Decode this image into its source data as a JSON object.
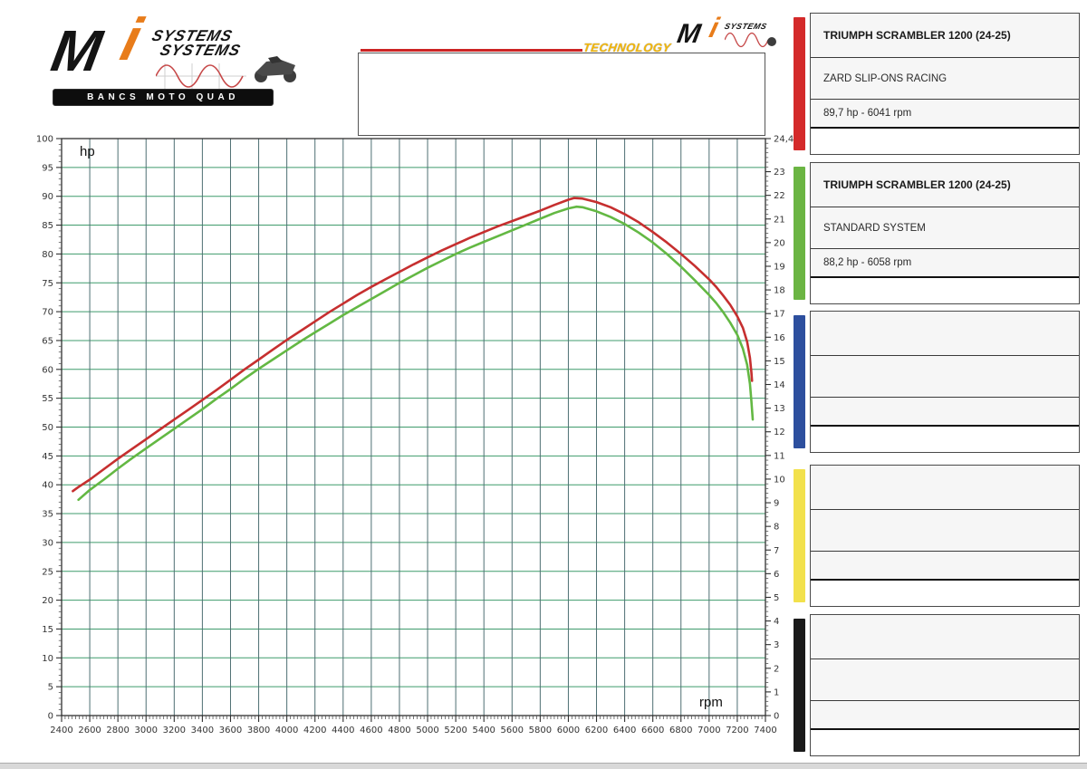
{
  "header": {
    "logo": {
      "brand_m": "M",
      "brand_i": "i",
      "systems_line1": "SYSTEMS",
      "systems_line2": "SYSTEMS",
      "tagline": "BANCS MOTO QUAD"
    },
    "technology_label": "TECHNOLOGY",
    "small_logo": {
      "brand_m": "M",
      "brand_i": "i",
      "systems": "SYSTEMS"
    },
    "note_box_text": ""
  },
  "colors": {
    "accent_red": "#cc2424",
    "accent_orange": "#e87c1a",
    "technology_yellow": "#f3b70a",
    "grid_horizontal": "#3f9b6c",
    "grid_vertical": "#4e6f73"
  },
  "chart_data": {
    "type": "line",
    "title": "",
    "grid": {
      "show": true,
      "horizontal_color": "#3f9b6c",
      "vertical_color": "#4e6f73"
    },
    "axes": {
      "x": {
        "label": "rpm",
        "min": 2400,
        "max": 7400,
        "tick_step": 200,
        "minor_step": 25,
        "tick_labels": [
          "2400",
          "2600",
          "2800",
          "3000",
          "3200",
          "3400",
          "3600",
          "3800",
          "4000",
          "4200",
          "4400",
          "4600",
          "4800",
          "5000",
          "5200",
          "5400",
          "5600",
          "5800",
          "6000",
          "6200",
          "6400",
          "6600",
          "6800",
          "7000",
          "7200",
          "7400"
        ]
      },
      "y_left": {
        "label": "hp",
        "min": 0,
        "max": 100,
        "tick_step": 5,
        "minor_step": 1,
        "tick_labels": [
          "0",
          "5",
          "10",
          "15",
          "20",
          "25",
          "30",
          "35",
          "40",
          "45",
          "50",
          "55",
          "60",
          "65",
          "70",
          "75",
          "80",
          "85",
          "90",
          "95",
          "100"
        ]
      },
      "y_right": {
        "label": "",
        "min": 0,
        "max": 24.4,
        "tick_step": 1,
        "minor_step": 0.2,
        "top_label": "24,4",
        "tick_labels": [
          "0",
          "1",
          "2",
          "3",
          "4",
          "5",
          "6",
          "7",
          "8",
          "9",
          "10",
          "11",
          "12",
          "13",
          "14",
          "15",
          "16",
          "17",
          "18",
          "19",
          "20",
          "21",
          "22",
          "23"
        ]
      }
    },
    "series": [
      {
        "id": "zard",
        "name": "ZARD SLIP-ONS RACING",
        "color": "#c62f2f",
        "peak_label": "89,7 hp - 6041 rpm",
        "points": [
          [
            2480,
            38.9
          ],
          [
            2520,
            39.6
          ],
          [
            2600,
            40.9
          ],
          [
            2700,
            42.7
          ],
          [
            2800,
            44.5
          ],
          [
            2900,
            46.2
          ],
          [
            3000,
            47.9
          ],
          [
            3100,
            49.6
          ],
          [
            3200,
            51.3
          ],
          [
            3300,
            53.0
          ],
          [
            3400,
            54.7
          ],
          [
            3500,
            56.4
          ],
          [
            3600,
            58.2
          ],
          [
            3700,
            60.0
          ],
          [
            3800,
            61.7
          ],
          [
            3900,
            63.4
          ],
          [
            4000,
            65.1
          ],
          [
            4100,
            66.7
          ],
          [
            4200,
            68.3
          ],
          [
            4300,
            69.9
          ],
          [
            4400,
            71.4
          ],
          [
            4500,
            72.9
          ],
          [
            4600,
            74.3
          ],
          [
            4700,
            75.6
          ],
          [
            4800,
            76.9
          ],
          [
            4900,
            78.2
          ],
          [
            5000,
            79.4
          ],
          [
            5100,
            80.6
          ],
          [
            5200,
            81.7
          ],
          [
            5300,
            82.8
          ],
          [
            5400,
            83.8
          ],
          [
            5500,
            84.8
          ],
          [
            5600,
            85.7
          ],
          [
            5700,
            86.6
          ],
          [
            5800,
            87.5
          ],
          [
            5900,
            88.5
          ],
          [
            6000,
            89.4
          ],
          [
            6041,
            89.7
          ],
          [
            6100,
            89.6
          ],
          [
            6200,
            89.0
          ],
          [
            6300,
            88.1
          ],
          [
            6400,
            86.9
          ],
          [
            6500,
            85.5
          ],
          [
            6600,
            83.8
          ],
          [
            6700,
            82.0
          ],
          [
            6800,
            80.0
          ],
          [
            6900,
            77.9
          ],
          [
            7000,
            75.6
          ],
          [
            7050,
            74.3
          ],
          [
            7100,
            72.8
          ],
          [
            7150,
            71.2
          ],
          [
            7200,
            69.2
          ],
          [
            7240,
            67.2
          ],
          [
            7270,
            64.8
          ],
          [
            7290,
            62.0
          ],
          [
            7300,
            59.5
          ],
          [
            7305,
            58.0
          ]
        ]
      },
      {
        "id": "standard",
        "name": "STANDARD SYSTEM",
        "color": "#63b843",
        "peak_label": "88,2 hp - 6058 rpm",
        "points": [
          [
            2520,
            37.4
          ],
          [
            2600,
            39.1
          ],
          [
            2700,
            40.9
          ],
          [
            2800,
            42.8
          ],
          [
            2900,
            44.6
          ],
          [
            3000,
            46.3
          ],
          [
            3100,
            48.0
          ],
          [
            3200,
            49.7
          ],
          [
            3300,
            51.4
          ],
          [
            3400,
            53.1
          ],
          [
            3500,
            54.9
          ],
          [
            3600,
            56.6
          ],
          [
            3700,
            58.4
          ],
          [
            3800,
            60.1
          ],
          [
            3900,
            61.7
          ],
          [
            4000,
            63.3
          ],
          [
            4100,
            64.9
          ],
          [
            4200,
            66.4
          ],
          [
            4300,
            67.9
          ],
          [
            4400,
            69.4
          ],
          [
            4500,
            70.8
          ],
          [
            4600,
            72.2
          ],
          [
            4700,
            73.6
          ],
          [
            4800,
            75.0
          ],
          [
            4900,
            76.3
          ],
          [
            5000,
            77.6
          ],
          [
            5100,
            78.8
          ],
          [
            5200,
            80.0
          ],
          [
            5300,
            81.1
          ],
          [
            5400,
            82.1
          ],
          [
            5500,
            83.1
          ],
          [
            5600,
            84.1
          ],
          [
            5700,
            85.1
          ],
          [
            5800,
            86.1
          ],
          [
            5900,
            87.1
          ],
          [
            6000,
            87.9
          ],
          [
            6058,
            88.2
          ],
          [
            6100,
            88.1
          ],
          [
            6200,
            87.4
          ],
          [
            6300,
            86.4
          ],
          [
            6400,
            85.2
          ],
          [
            6500,
            83.7
          ],
          [
            6600,
            82.0
          ],
          [
            6700,
            80.0
          ],
          [
            6800,
            77.8
          ],
          [
            6900,
            75.4
          ],
          [
            7000,
            72.9
          ],
          [
            7050,
            71.5
          ],
          [
            7100,
            69.9
          ],
          [
            7150,
            68.1
          ],
          [
            7200,
            66.0
          ],
          [
            7240,
            63.6
          ],
          [
            7270,
            60.8
          ],
          [
            7290,
            57.5
          ],
          [
            7300,
            54.5
          ],
          [
            7310,
            51.3
          ]
        ]
      }
    ]
  },
  "legend": {
    "cards": [
      {
        "color": "#d42a2a",
        "title": "TRIUMPH SCRAMBLER 1200 (24-25)",
        "system": "ZARD SLIP-ONS RACING",
        "result": "89,7 hp - 6041 rpm",
        "notes": ""
      },
      {
        "color": "#6bb543",
        "title": "TRIUMPH SCRAMBLER 1200 (24-25)",
        "system": "STANDARD SYSTEM",
        "result": "88,2 hp - 6058 rpm",
        "notes": ""
      },
      {
        "color": "#2d4f9e",
        "title": "",
        "system": "",
        "result": "",
        "notes": ""
      },
      {
        "color": "#f2e14c",
        "title": "",
        "system": "",
        "result": "",
        "notes": ""
      },
      {
        "color": "#1a1a1a",
        "title": "",
        "system": "",
        "result": "",
        "notes": ""
      }
    ]
  }
}
